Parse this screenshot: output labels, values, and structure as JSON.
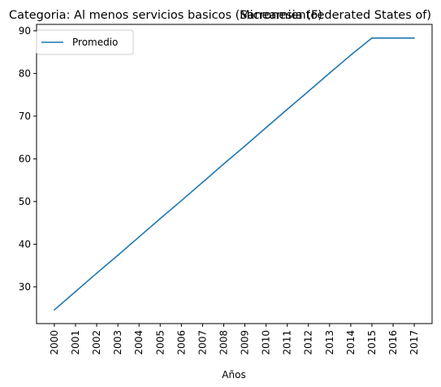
{
  "chart_data": {
    "type": "line",
    "title_left": "Categoria: Al menos servicios basicos (Saneamiento)",
    "title_right": "Micronesia (Federated States of)",
    "xlabel": "Años",
    "ylabel": "",
    "categories": [
      "2000",
      "2001",
      "2002",
      "2003",
      "2004",
      "2005",
      "2006",
      "2007",
      "2008",
      "2009",
      "2010",
      "2011",
      "2012",
      "2013",
      "2014",
      "2015",
      "2016",
      "2017"
    ],
    "series": [
      {
        "name": "Promedio",
        "color": "#1f77b4",
        "values": [
          24.6,
          28.9,
          33.2,
          37.4,
          41.7,
          46.0,
          50.2,
          54.5,
          58.8,
          63.0,
          67.3,
          71.6,
          75.8,
          80.1,
          84.3,
          88.3,
          88.3,
          88.3
        ]
      }
    ],
    "ylim": [
      21.4,
      91.5
    ],
    "yticks": [
      30,
      40,
      50,
      60,
      70,
      80,
      90
    ],
    "grid": false,
    "legend": "upper-left"
  }
}
